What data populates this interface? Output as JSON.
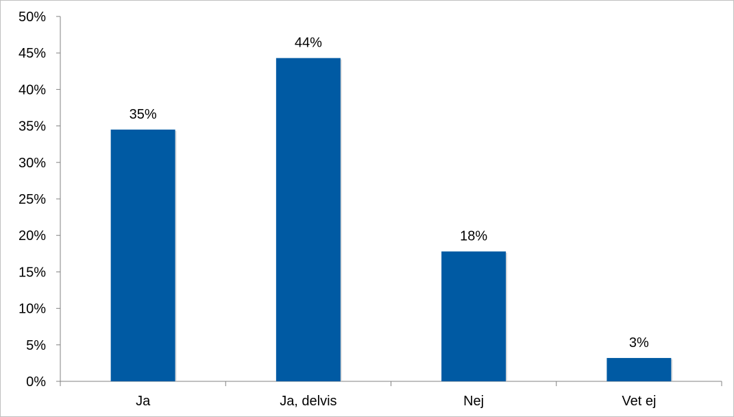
{
  "colors": {
    "bar": "#005aa3",
    "axis": "#808080",
    "text": "#000000",
    "background": "#ffffff"
  },
  "chart_data": {
    "type": "bar",
    "title": "",
    "xlabel": "",
    "ylabel": "",
    "categories": [
      "Ja",
      "Ja, delvis",
      "Nej",
      "Vet ej"
    ],
    "values": [
      34.5,
      44.3,
      17.8,
      3.2
    ],
    "data_labels": [
      "35%",
      "44%",
      "18%",
      "3%"
    ],
    "ylim": [
      0,
      50
    ],
    "y_ticks": [
      0,
      5,
      10,
      15,
      20,
      25,
      30,
      35,
      40,
      45,
      50
    ],
    "y_tick_labels": [
      "0%",
      "5%",
      "10%",
      "15%",
      "20%",
      "25%",
      "30%",
      "35%",
      "40%",
      "45%",
      "50%"
    ],
    "grid": false,
    "legend": "none"
  }
}
